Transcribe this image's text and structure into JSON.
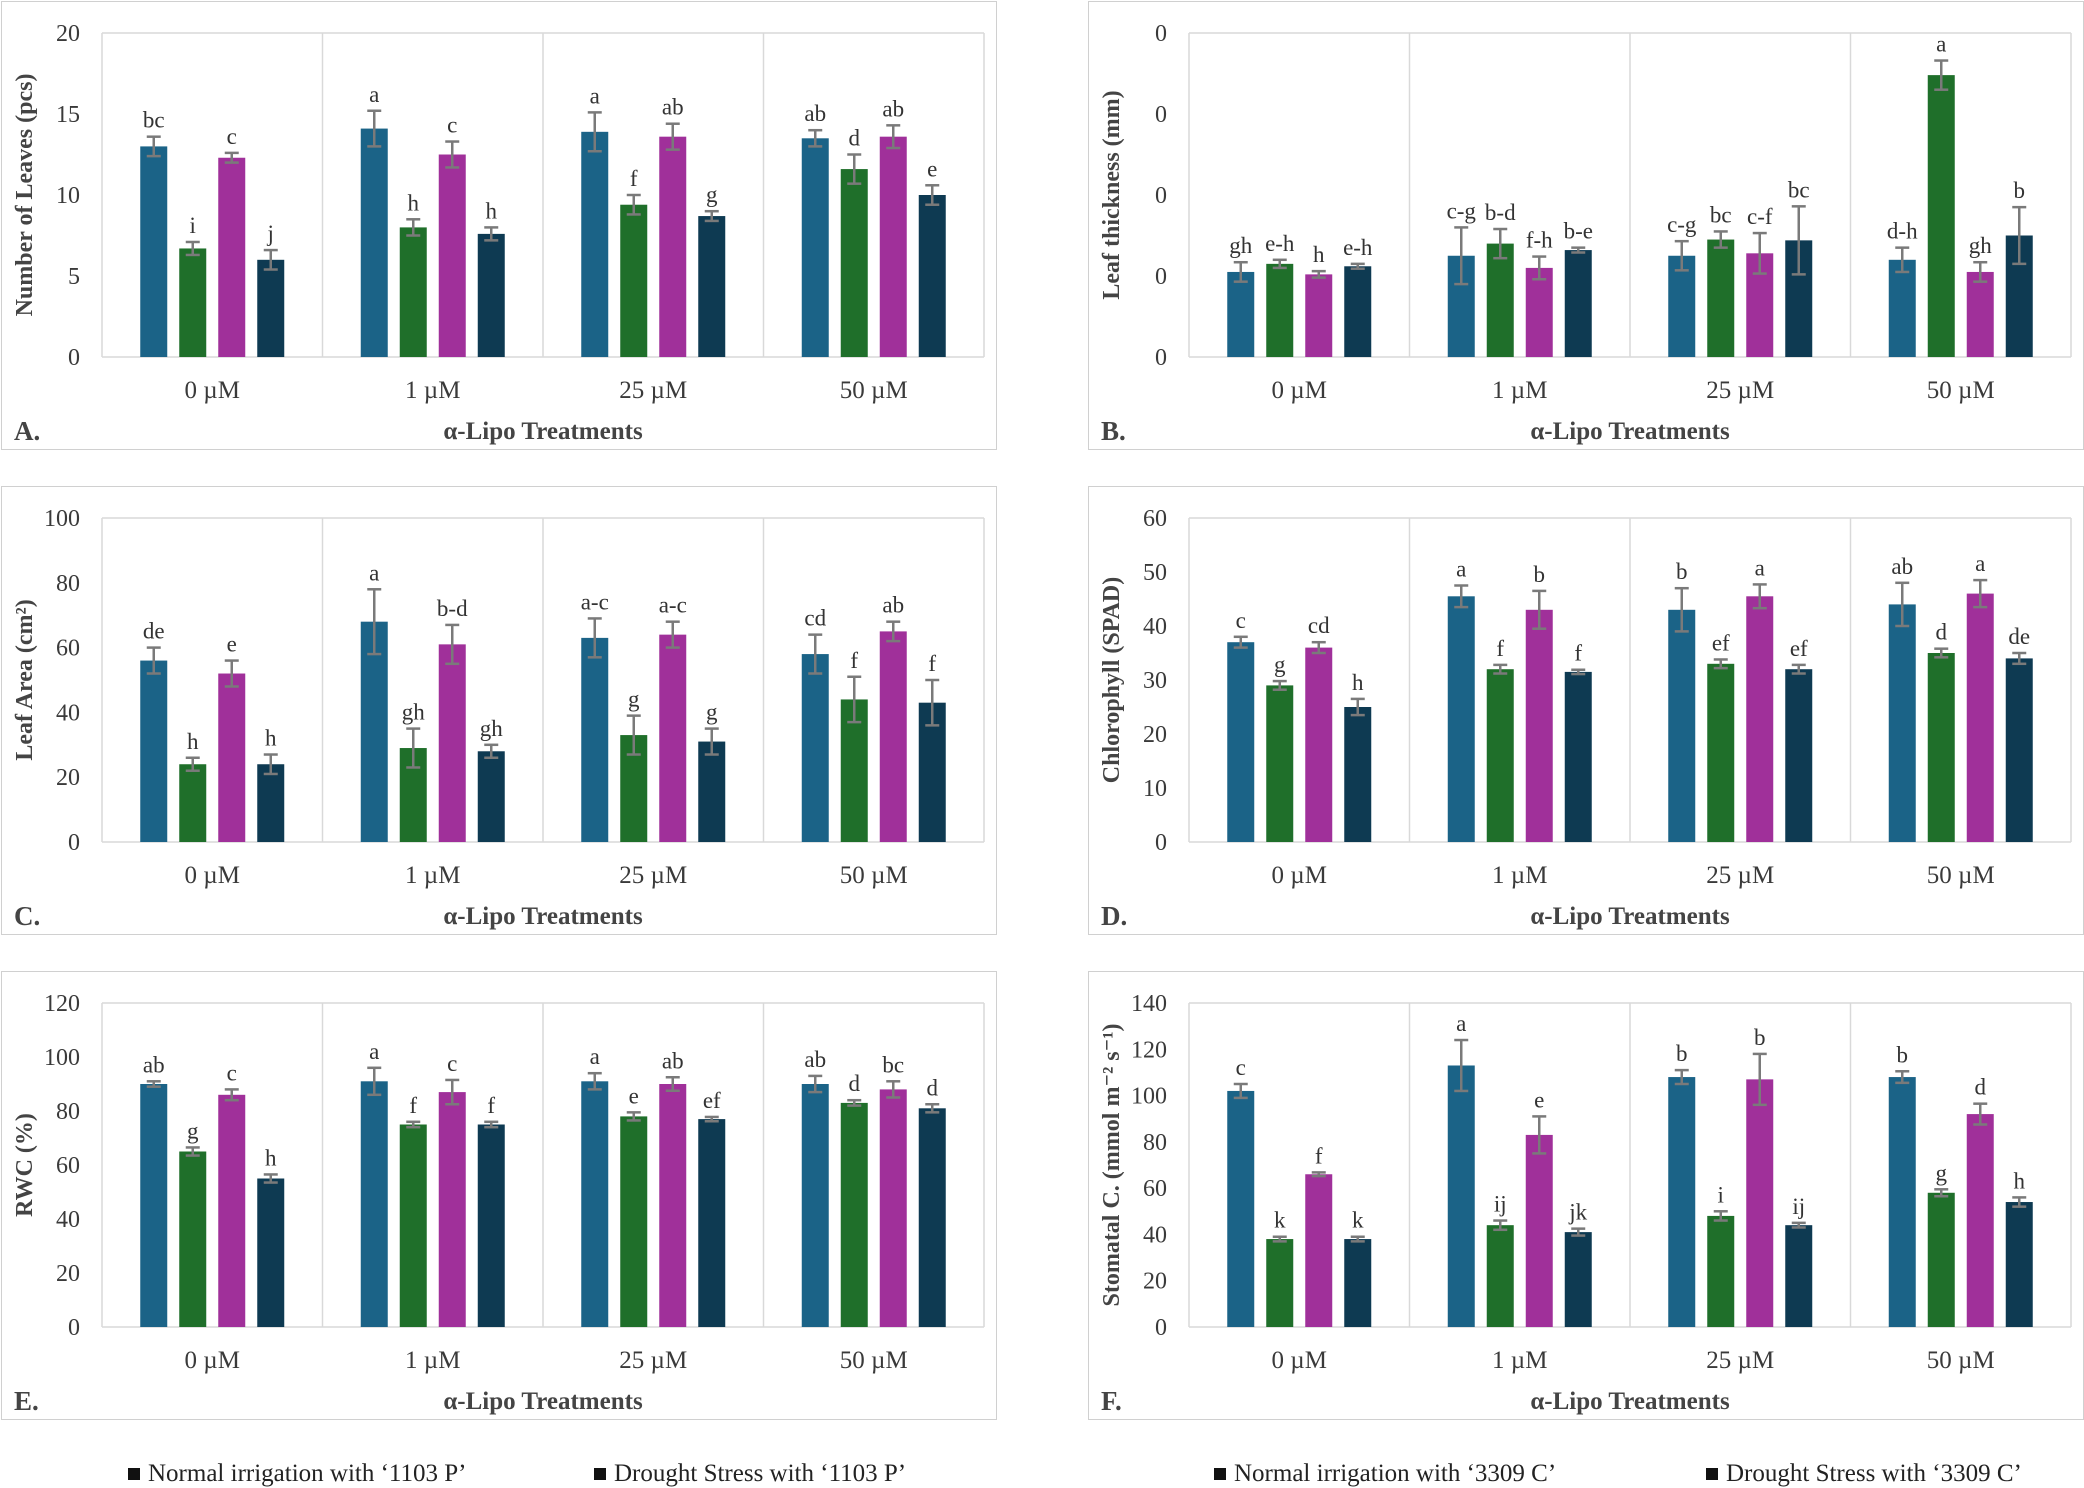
{
  "legend": {
    "items": [
      {
        "label": "Normal irrigation with ‘1103 P’",
        "color": "#1b6387"
      },
      {
        "label": "Drought Stress with ‘1103 P’",
        "color": "#1f6f2a"
      },
      {
        "label": "Normal irrigation with ‘3309 C’",
        "color": "#a0309a"
      },
      {
        "label": "Drought Stress with ‘3309 C’",
        "color": "#0e3a52"
      }
    ]
  },
  "chart_data": [
    {
      "panel": "A.",
      "type": "bar",
      "xlabel": "α-Lipo Treatments",
      "ylabel": "Number of Leaves (pcs)",
      "ylim": [
        0,
        20
      ],
      "yticks": [
        "0",
        "5",
        "10",
        "15",
        "20"
      ],
      "categories": [
        "0 µM",
        "1 µM",
        "25 µM",
        "50 µM"
      ],
      "grid": false,
      "series": [
        {
          "values": [
            13.0,
            14.1,
            13.9,
            13.5
          ],
          "errors": [
            0.6,
            1.1,
            1.2,
            0.5
          ],
          "letters": [
            "bc",
            "a",
            "a",
            "ab"
          ]
        },
        {
          "values": [
            6.7,
            8.0,
            9.4,
            11.6
          ],
          "errors": [
            0.4,
            0.5,
            0.6,
            0.9
          ],
          "letters": [
            "i",
            "h",
            "f",
            "d"
          ]
        },
        {
          "values": [
            12.3,
            12.5,
            13.6,
            13.6
          ],
          "errors": [
            0.3,
            0.8,
            0.8,
            0.7
          ],
          "letters": [
            "c",
            "c",
            "ab",
            "ab"
          ]
        },
        {
          "values": [
            6.0,
            7.6,
            8.7,
            10.0
          ],
          "errors": [
            0.6,
            0.4,
            0.3,
            0.6
          ],
          "letters": [
            "j",
            "h",
            "g",
            "e"
          ]
        }
      ]
    },
    {
      "panel": "B.",
      "type": "bar",
      "xlabel": "α-Lipo Treatments",
      "ylabel": "Leaf thickness (mm)",
      "ylim": [
        0,
        4
      ],
      "yticks": [
        "0",
        "0",
        "0",
        "0",
        "0"
      ],
      "categories": [
        "0 µM",
        "1 µM",
        "25 µM",
        "50 µM"
      ],
      "grid": false,
      "series": [
        {
          "values": [
            1.05,
            1.25,
            1.25,
            1.2
          ],
          "errors": [
            0.12,
            0.35,
            0.18,
            0.15
          ],
          "letters": [
            "gh",
            "c-g",
            "c-g",
            "d-h"
          ]
        },
        {
          "values": [
            1.15,
            1.4,
            1.45,
            3.48
          ],
          "errors": [
            0.05,
            0.18,
            0.1,
            0.18
          ],
          "letters": [
            "e-h",
            "b-d",
            "bc",
            "a"
          ]
        },
        {
          "values": [
            1.02,
            1.1,
            1.28,
            1.05
          ],
          "errors": [
            0.04,
            0.14,
            0.25,
            0.12
          ],
          "letters": [
            "h",
            "f-h",
            "c-f",
            "gh"
          ]
        },
        {
          "values": [
            1.12,
            1.32,
            1.44,
            1.5
          ],
          "errors": [
            0.03,
            0.03,
            0.42,
            0.35
          ],
          "letters": [
            "e-h",
            "b-e",
            "bc",
            "b"
          ]
        }
      ]
    },
    {
      "panel": "C.",
      "type": "bar",
      "xlabel": "α-Lipo Treatments",
      "ylabel": "Leaf Area (cm²)",
      "ylim": [
        0,
        100
      ],
      "yticks": [
        "0",
        "20",
        "40",
        "60",
        "80",
        "100"
      ],
      "categories": [
        "0 µM",
        "1 µM",
        "25 µM",
        "50 µM"
      ],
      "grid": false,
      "series": [
        {
          "values": [
            56,
            68,
            63,
            58
          ],
          "errors": [
            4,
            10,
            6,
            6
          ],
          "letters": [
            "de",
            "a",
            "a-c",
            "cd"
          ]
        },
        {
          "values": [
            24,
            29,
            33,
            44
          ],
          "errors": [
            2,
            6,
            6,
            7
          ],
          "letters": [
            "h",
            "gh",
            "g",
            "f"
          ]
        },
        {
          "values": [
            52,
            61,
            64,
            65
          ],
          "errors": [
            4,
            6,
            4,
            3
          ],
          "letters": [
            "e",
            "b-d",
            "a-c",
            "ab"
          ]
        },
        {
          "values": [
            24,
            28,
            31,
            43
          ],
          "errors": [
            3,
            2,
            4,
            7
          ],
          "letters": [
            "h",
            "gh",
            "g",
            "f"
          ]
        }
      ]
    },
    {
      "panel": "D.",
      "type": "bar",
      "xlabel": "α-Lipo Treatments",
      "ylabel": "Chlorophyll (SPAD)",
      "ylim": [
        0,
        60
      ],
      "yticks": [
        "0",
        "10",
        "20",
        "30",
        "40",
        "50",
        "60"
      ],
      "categories": [
        "0 µM",
        "1 µM",
        "25 µM",
        "50 µM"
      ],
      "grid": false,
      "series": [
        {
          "values": [
            37,
            45.5,
            43,
            44
          ],
          "errors": [
            1,
            2,
            4,
            4
          ],
          "letters": [
            "c",
            "a",
            "b",
            "ab"
          ]
        },
        {
          "values": [
            29,
            32,
            33,
            35
          ],
          "errors": [
            0.8,
            0.8,
            0.8,
            0.8
          ],
          "letters": [
            "g",
            "f",
            "ef",
            "d"
          ]
        },
        {
          "values": [
            36,
            43,
            45.5,
            46
          ],
          "errors": [
            1,
            3.5,
            2.2,
            2.5
          ],
          "letters": [
            "cd",
            "b",
            "a",
            "a"
          ]
        },
        {
          "values": [
            25,
            31.5,
            32,
            34
          ],
          "errors": [
            1.5,
            0.4,
            0.8,
            1
          ],
          "letters": [
            "h",
            "f",
            "ef",
            "de"
          ]
        }
      ]
    },
    {
      "panel": "E.",
      "type": "bar",
      "xlabel": "α-Lipo Treatments",
      "ylabel": "RWC (%)",
      "ylim": [
        0,
        120
      ],
      "yticks": [
        "0",
        "20",
        "40",
        "60",
        "80",
        "100",
        "120"
      ],
      "categories": [
        "0 µM",
        "1 µM",
        "25 µM",
        "50 µM"
      ],
      "grid": false,
      "series": [
        {
          "values": [
            90,
            91,
            91,
            90
          ],
          "errors": [
            1,
            5,
            3,
            3
          ],
          "letters": [
            "ab",
            "a",
            "a",
            "ab"
          ]
        },
        {
          "values": [
            65,
            75,
            78,
            83
          ],
          "errors": [
            1.5,
            1,
            1.5,
            1
          ],
          "letters": [
            "g",
            "f",
            "e",
            "d"
          ]
        },
        {
          "values": [
            86,
            87,
            90,
            88
          ],
          "errors": [
            2,
            4.5,
            2.5,
            3
          ],
          "letters": [
            "c",
            "c",
            "ab",
            "bc"
          ]
        },
        {
          "values": [
            55,
            75,
            77,
            81
          ],
          "errors": [
            1.5,
            1,
            0.8,
            1.5
          ],
          "letters": [
            "h",
            "f",
            "ef",
            "d"
          ]
        }
      ]
    },
    {
      "panel": "F.",
      "type": "bar",
      "xlabel": "α-Lipo Treatments",
      "ylabel": "Stomatal C. (mmol m⁻² s⁻¹)",
      "ylim": [
        0,
        140
      ],
      "yticks": [
        "0",
        "20",
        "40",
        "60",
        "80",
        "100",
        "120",
        "140"
      ],
      "categories": [
        "0 µM",
        "1 µM",
        "25 µM",
        "50 µM"
      ],
      "grid": false,
      "series": [
        {
          "values": [
            102,
            113,
            108,
            108
          ],
          "errors": [
            3,
            11,
            3,
            2.5
          ],
          "letters": [
            "c",
            "a",
            "b",
            "b"
          ]
        },
        {
          "values": [
            38,
            44,
            48,
            58
          ],
          "errors": [
            1,
            2,
            2,
            1.5
          ],
          "letters": [
            "k",
            "ij",
            "i",
            "g"
          ]
        },
        {
          "values": [
            66,
            83,
            107,
            92
          ],
          "errors": [
            0.8,
            8,
            11,
            4.5
          ],
          "letters": [
            "f",
            "e",
            "b",
            "d"
          ]
        },
        {
          "values": [
            38,
            41,
            44,
            54
          ],
          "errors": [
            1,
            1.5,
            1,
            2
          ],
          "letters": [
            "k",
            "jk",
            "ij",
            "h"
          ]
        }
      ]
    }
  ]
}
